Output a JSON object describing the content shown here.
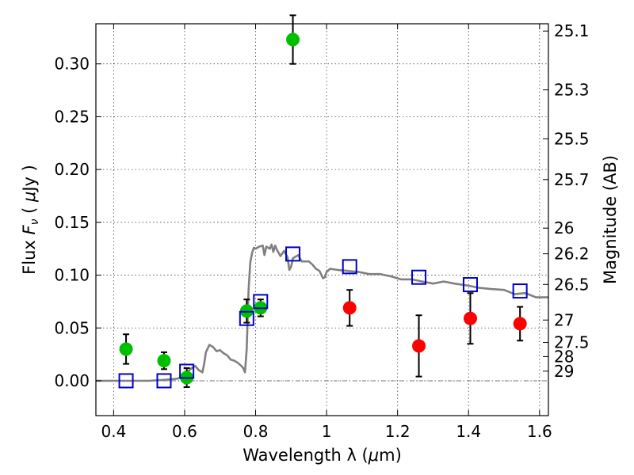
{
  "chart_data": {
    "type": "scatter",
    "xlabel_main": "Wavelength  λ (",
    "xlabel_unit_sym": "μ",
    "xlabel_unit_rest": "m)",
    "ylabel_main": "Flux  ",
    "ylabel_sym": "F",
    "ylabel_sub": "ν",
    "ylabel_unit_open": "  ( ",
    "ylabel_unit_sym": "μ",
    "ylabel_unit_rest": "Jy )",
    "y2label": "Magnitude (AB)",
    "xlim": [
      0.35,
      1.625
    ],
    "ylim": [
      -0.033,
      0.338
    ],
    "xticks": [
      0.4,
      0.6,
      0.8,
      1.0,
      1.2,
      1.4,
      1.6
    ],
    "xtick_labels": [
      "0.4",
      "0.6",
      "0.8",
      "1",
      "1.2",
      "1.4",
      "1.6"
    ],
    "yticks": [
      0.0,
      0.05,
      0.1,
      0.15,
      0.2,
      0.25,
      0.3
    ],
    "ytick_labels": [
      "0.00",
      "0.05",
      "0.10",
      "0.15",
      "0.20",
      "0.25",
      "0.30"
    ],
    "mag_ticks": [
      {
        "label": "25.1",
        "flux": 0.3311
      },
      {
        "label": "25.3",
        "flux": 0.2754
      },
      {
        "label": "25.5",
        "flux": 0.2291
      },
      {
        "label": "25.7",
        "flux": 0.1905
      },
      {
        "label": "26",
        "flux": 0.1445
      },
      {
        "label": "26.2",
        "flux": 0.1202
      },
      {
        "label": "26.5",
        "flux": 0.0912
      },
      {
        "label": "27",
        "flux": 0.0575
      },
      {
        "label": "27.5",
        "flux": 0.0363
      },
      {
        "label": "28",
        "flux": 0.0229
      },
      {
        "label": "29",
        "flux": 0.0091
      }
    ],
    "reference_line_y": 0.0,
    "series": [
      {
        "name": "model_sed",
        "type": "line",
        "color": "#808080",
        "points": [
          [
            0.35,
            0.0
          ],
          [
            0.44,
            0.0
          ],
          [
            0.5,
            0.0
          ],
          [
            0.55,
            0.001
          ],
          [
            0.58,
            0.002
          ],
          [
            0.6,
            0.005
          ],
          [
            0.61,
            0.009
          ],
          [
            0.62,
            0.012
          ],
          [
            0.63,
            0.014
          ],
          [
            0.64,
            0.01
          ],
          [
            0.65,
            0.008
          ],
          [
            0.655,
            0.016
          ],
          [
            0.66,
            0.027
          ],
          [
            0.67,
            0.034
          ],
          [
            0.68,
            0.032
          ],
          [
            0.69,
            0.028
          ],
          [
            0.7,
            0.029
          ],
          [
            0.71,
            0.026
          ],
          [
            0.72,
            0.024
          ],
          [
            0.73,
            0.02
          ],
          [
            0.74,
            0.019
          ],
          [
            0.75,
            0.017
          ],
          [
            0.76,
            0.014
          ],
          [
            0.765,
            0.012
          ],
          [
            0.77,
            0.008
          ],
          [
            0.775,
            0.03
          ],
          [
            0.78,
            0.085
          ],
          [
            0.785,
            0.112
          ],
          [
            0.79,
            0.121
          ],
          [
            0.795,
            0.126
          ],
          [
            0.8,
            0.125
          ],
          [
            0.81,
            0.127
          ],
          [
            0.82,
            0.128
          ],
          [
            0.825,
            0.119
          ],
          [
            0.83,
            0.127
          ],
          [
            0.84,
            0.125
          ],
          [
            0.845,
            0.129
          ],
          [
            0.85,
            0.122
          ],
          [
            0.855,
            0.128
          ],
          [
            0.86,
            0.124
          ],
          [
            0.87,
            0.118
          ],
          [
            0.88,
            0.123
          ],
          [
            0.89,
            0.117
          ],
          [
            0.895,
            0.105
          ],
          [
            0.9,
            0.108
          ],
          [
            0.905,
            0.116
          ],
          [
            0.92,
            0.119
          ],
          [
            0.93,
            0.113
          ],
          [
            0.95,
            0.113
          ],
          [
            0.96,
            0.11
          ],
          [
            0.97,
            0.106
          ],
          [
            0.98,
            0.104
          ],
          [
            0.99,
            0.097
          ],
          [
            0.995,
            0.098
          ],
          [
            1.0,
            0.103
          ],
          [
            1.01,
            0.106
          ],
          [
            1.03,
            0.105
          ],
          [
            1.06,
            0.104
          ],
          [
            1.09,
            0.103
          ],
          [
            1.12,
            0.101
          ],
          [
            1.15,
            0.101
          ],
          [
            1.18,
            0.099
          ],
          [
            1.21,
            0.096
          ],
          [
            1.24,
            0.096
          ],
          [
            1.27,
            0.094
          ],
          [
            1.3,
            0.092
          ],
          [
            1.33,
            0.094
          ],
          [
            1.36,
            0.092
          ],
          [
            1.4,
            0.09
          ],
          [
            1.43,
            0.088
          ],
          [
            1.46,
            0.087
          ],
          [
            1.5,
            0.086
          ],
          [
            1.53,
            0.082
          ],
          [
            1.56,
            0.083
          ],
          [
            1.59,
            0.079
          ],
          [
            1.625,
            0.079
          ]
        ]
      },
      {
        "name": "green_photometry",
        "type": "scatter",
        "marker": "circle",
        "color": "#00bf00",
        "points": [
          {
            "x": 0.435,
            "y": 0.03,
            "err": 0.014
          },
          {
            "x": 0.542,
            "y": 0.019,
            "err": 0.008
          },
          {
            "x": 0.606,
            "y": 0.003,
            "err": 0.009
          },
          {
            "x": 0.775,
            "y": 0.066,
            "err": 0.011
          },
          {
            "x": 0.814,
            "y": 0.069,
            "err": 0.008
          },
          {
            "x": 0.905,
            "y": 0.323,
            "err": 0.023
          }
        ]
      },
      {
        "name": "red_photometry",
        "type": "scatter",
        "marker": "circle",
        "color": "#ff0000",
        "points": [
          {
            "x": 1.065,
            "y": 0.069,
            "err": 0.017
          },
          {
            "x": 1.26,
            "y": 0.033,
            "err": 0.029
          },
          {
            "x": 1.405,
            "y": 0.059,
            "err": 0.024
          },
          {
            "x": 1.545,
            "y": 0.054,
            "err": 0.016
          }
        ]
      },
      {
        "name": "model_bandpass",
        "type": "scatter",
        "marker": "square",
        "color": "#0000cc",
        "points": [
          {
            "x": 0.435,
            "y": 0.0
          },
          {
            "x": 0.542,
            "y": 0.0
          },
          {
            "x": 0.606,
            "y": 0.009
          },
          {
            "x": 0.775,
            "y": 0.059
          },
          {
            "x": 0.814,
            "y": 0.075
          },
          {
            "x": 0.905,
            "y": 0.12
          },
          {
            "x": 1.065,
            "y": 0.108
          },
          {
            "x": 1.26,
            "y": 0.098
          },
          {
            "x": 1.405,
            "y": 0.091
          },
          {
            "x": 1.545,
            "y": 0.085
          }
        ]
      }
    ]
  }
}
